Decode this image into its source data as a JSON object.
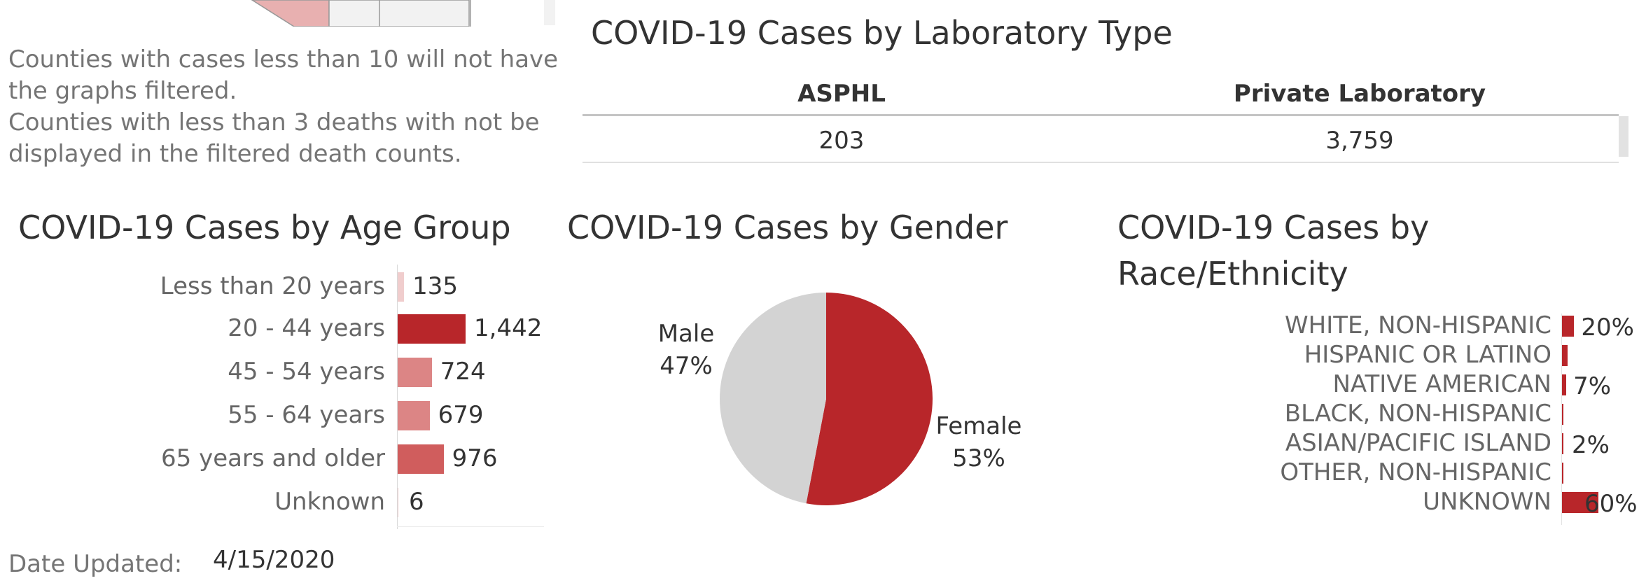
{
  "notes": [
    "Counties with cases less than 10 will not have the graphs filtered.",
    "Counties with less than 3 deaths with not be displayed in the filtered death counts."
  ],
  "colors": {
    "accent": "#b8262a",
    "age_light": "#dc8585",
    "age_mid": "#d05d5d",
    "age_pale": "#f0cdcd",
    "neutral": "#d3d3d3",
    "map_fill": "#e8b0b0"
  },
  "lab": {
    "title": "COVID-19 Cases by Laboratory Type",
    "headers": [
      "ASPHL",
      "Private Laboratory"
    ],
    "values": [
      "203",
      "3,759"
    ]
  },
  "footer": {
    "date_label": "Date Updated:",
    "date_value": "4/15/2020"
  },
  "chart_data": [
    {
      "type": "bar",
      "orientation": "horizontal",
      "title": "COVID-19 Cases by Age Group",
      "categories": [
        "Less than 20 years",
        "20 - 44 years",
        "45 - 54 years",
        "55 - 64 years",
        "65 years and older",
        "Unknown"
      ],
      "values": [
        135,
        1442,
        724,
        679,
        976,
        6
      ],
      "value_labels": [
        "135",
        "1,442",
        "724",
        "679",
        "976",
        "6"
      ],
      "bar_colors": [
        "#f0cdcd",
        "#b8262a",
        "#dc8585",
        "#dc8585",
        "#d05d5d",
        "#f0cdcd"
      ],
      "xlim": [
        0,
        1442
      ]
    },
    {
      "type": "pie",
      "title": "COVID-19 Cases by Gender",
      "categories": [
        "Female",
        "Male"
      ],
      "values": [
        53,
        47
      ],
      "value_labels": [
        "53%",
        "47%"
      ],
      "colors": [
        "#b8262a",
        "#d3d3d3"
      ]
    },
    {
      "type": "bar",
      "orientation": "horizontal",
      "title": "COVID-19 Cases by Race/Ethnicity",
      "categories": [
        "WHITE, NON-HISPANIC",
        "HISPANIC OR LATINO",
        "NATIVE AMERICAN",
        "BLACK, NON-HISPANIC",
        "ASIAN/PACIFIC ISLAND",
        "OTHER, NON-HISPANIC",
        "UNKNOWN"
      ],
      "values": [
        20,
        9,
        7,
        2,
        2,
        1,
        60
      ],
      "value_labels": [
        "20%",
        "",
        "7%",
        "",
        "2%",
        "",
        "60%"
      ],
      "bar_color": "#b8262a",
      "xlim": [
        0,
        60
      ]
    }
  ]
}
